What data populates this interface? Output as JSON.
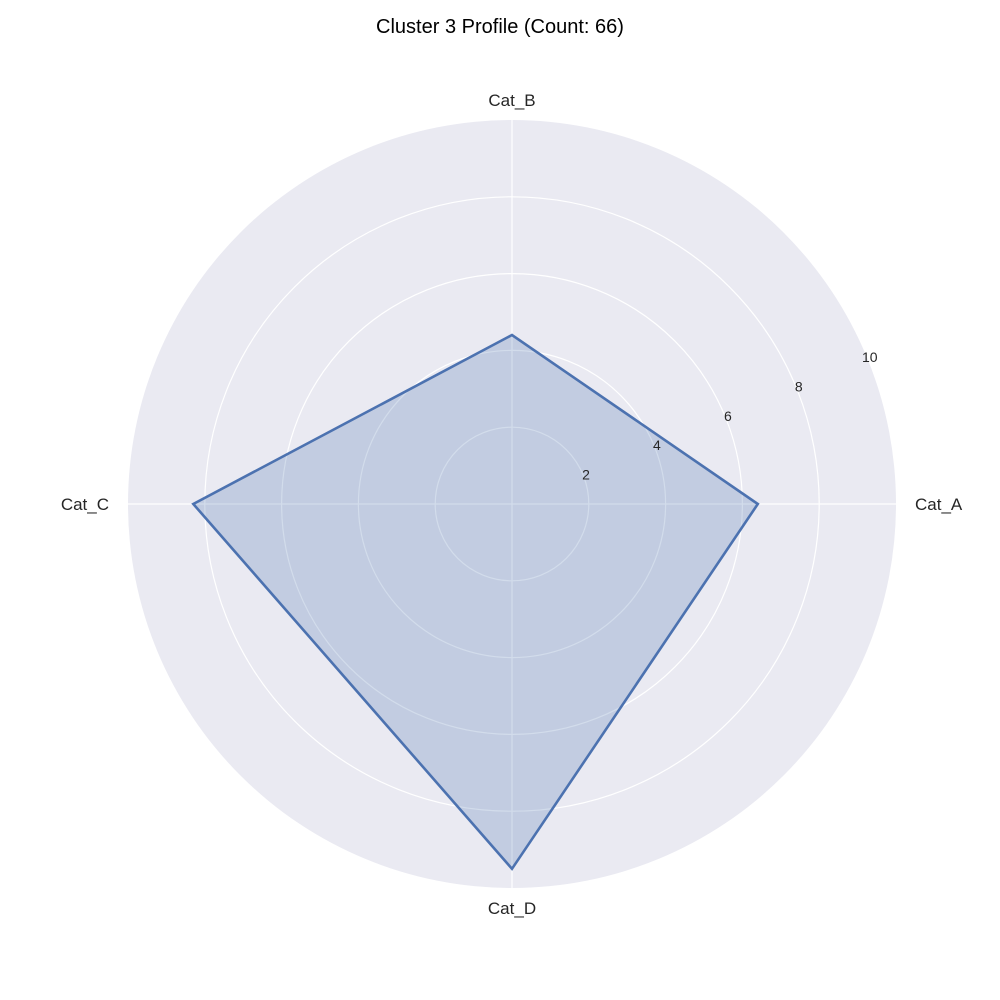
{
  "chart_data": {
    "type": "radar",
    "title": "Cluster 3 Profile (Count: 66)",
    "categories": [
      "Cat_A",
      "Cat_B",
      "Cat_C",
      "Cat_D"
    ],
    "series": [
      {
        "name": "Cluster 3",
        "values": [
          6.4,
          4.4,
          8.3,
          9.5
        ]
      }
    ],
    "rlim": [
      0,
      10
    ],
    "rticks": [
      2,
      4,
      6,
      8,
      10
    ],
    "rtick_labels": [
      "2",
      "4",
      "6",
      "8",
      "10"
    ],
    "grid": true,
    "colors": {
      "background": "#EAEAF2",
      "grid": "#FFFFFF",
      "line": "#4C72B0",
      "fill": "#4C72B0"
    }
  }
}
